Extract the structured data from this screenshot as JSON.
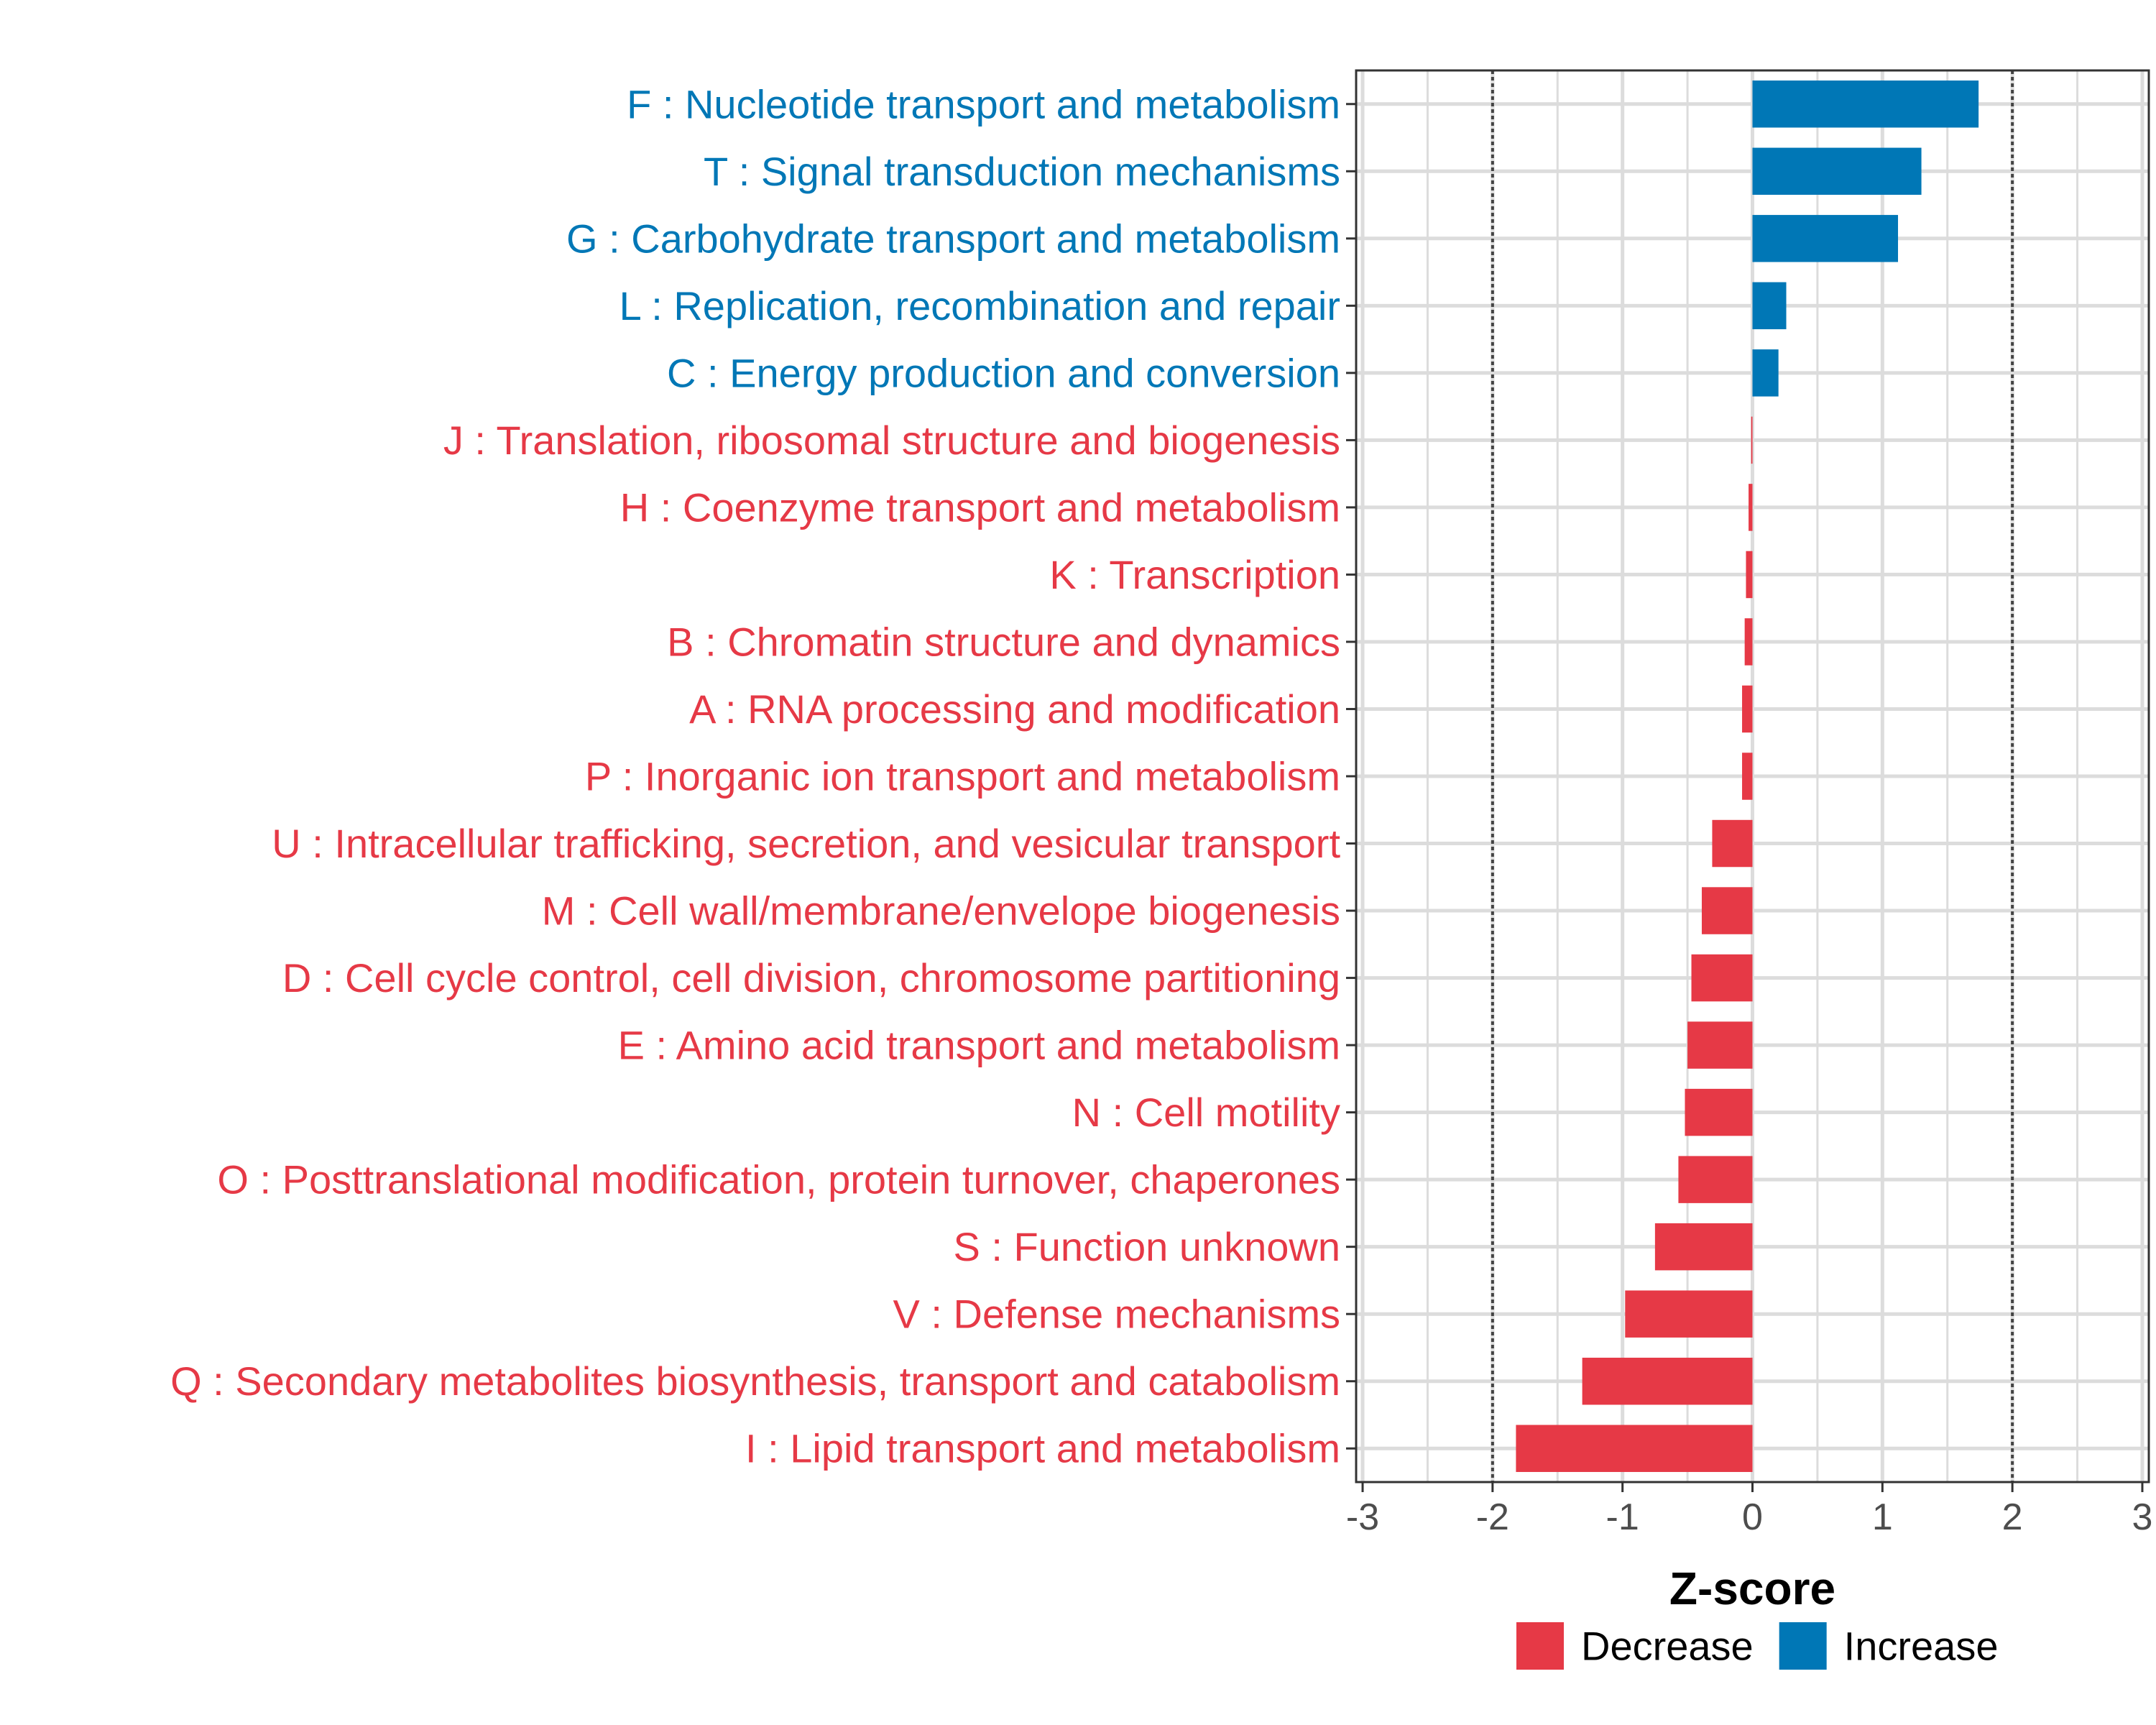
{
  "chart_data": {
    "type": "bar",
    "orientation": "horizontal",
    "xlabel": "Z-score",
    "ylabel": "",
    "xlim": [
      -3.05,
      3.05
    ],
    "xticks": [
      -3,
      -2,
      -1,
      0,
      1,
      2,
      3
    ],
    "xtick_labels": [
      "-3",
      "-2",
      "-1",
      "0",
      "1",
      "2",
      "3"
    ],
    "reference_lines": [
      -2,
      2
    ],
    "grid": true,
    "legend_position": "bottom",
    "legend": [
      {
        "name": "Decrease",
        "color": "#E63946"
      },
      {
        "name": "Increase",
        "color": "#0077B6"
      }
    ],
    "categories": [
      "F : Nucleotide transport and metabolism",
      "T : Signal transduction mechanisms",
      "G : Carbohydrate transport and metabolism",
      "L : Replication, recombination and repair",
      "C : Energy production and conversion",
      "J : Translation, ribosomal structure and biogenesis",
      "H : Coenzyme transport and metabolism",
      "K : Transcription",
      "B : Chromatin structure and dynamics",
      "A : RNA processing and modification",
      "P : Inorganic ion transport and metabolism",
      "U : Intracellular trafficking, secretion, and vesicular transport",
      "M : Cell wall/membrane/envelope biogenesis",
      "D : Cell cycle control, cell division, chromosome partitioning",
      "E : Amino acid transport and metabolism",
      "N : Cell motility",
      "O : Posttranslational modification, protein turnover, chaperones",
      "S : Function unknown",
      "V : Defense mechanisms",
      "Q : Secondary metabolites biosynthesis, transport and catabolism",
      "I : Lipid transport and metabolism"
    ],
    "values": [
      1.74,
      1.3,
      1.12,
      0.26,
      0.2,
      -0.01,
      -0.03,
      -0.05,
      -0.06,
      -0.08,
      -0.08,
      -0.31,
      -0.39,
      -0.47,
      -0.5,
      -0.52,
      -0.57,
      -0.75,
      -0.98,
      -1.31,
      -1.82
    ],
    "direction": [
      "Increase",
      "Increase",
      "Increase",
      "Increase",
      "Increase",
      "Decrease",
      "Decrease",
      "Decrease",
      "Decrease",
      "Decrease",
      "Decrease",
      "Decrease",
      "Decrease",
      "Decrease",
      "Decrease",
      "Decrease",
      "Decrease",
      "Decrease",
      "Decrease",
      "Decrease",
      "Decrease"
    ]
  }
}
